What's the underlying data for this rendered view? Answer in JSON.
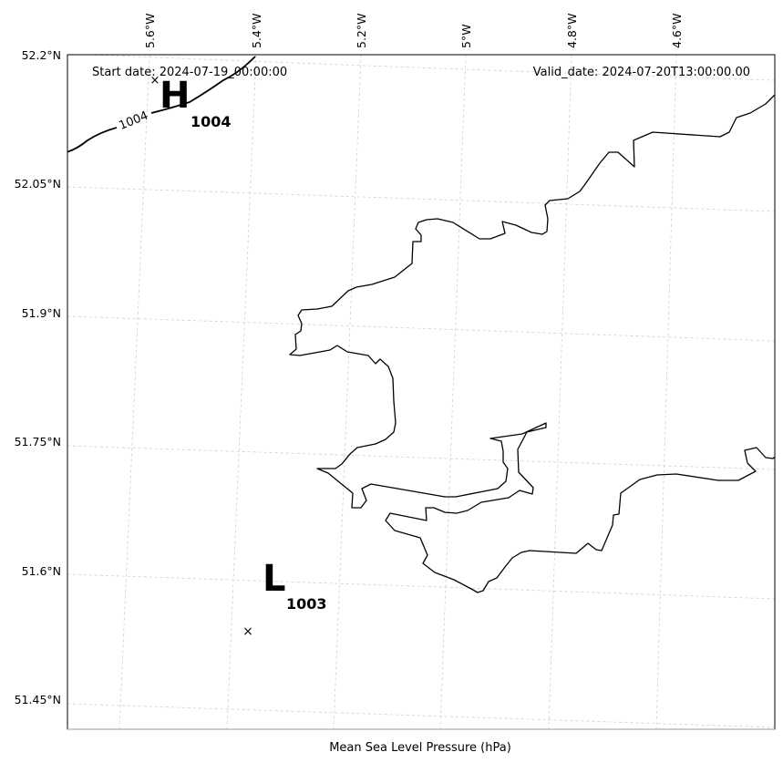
{
  "header": {
    "start_date": "Start date: 2024-07-19_00:00:00",
    "valid_date": "Valid_date: 2024-07-20T13:00:00.00"
  },
  "footer": {
    "xlabel": "Mean Sea Level Pressure (hPa)"
  },
  "axes": {
    "lon_ticks": [
      "5.6°W",
      "5.4°W",
      "5.2°W",
      "5°W",
      "4.8°W",
      "4.6°W"
    ],
    "lat_ticks": [
      "52.2°N",
      "52.05°N",
      "51.9°N",
      "51.75°N",
      "51.6°N",
      "51.45°N"
    ]
  },
  "pressure_centers": [
    {
      "type": "H",
      "value": "1004",
      "lon": -5.58,
      "lat": 52.17
    },
    {
      "type": "L",
      "value": "1003",
      "lon": -5.39,
      "lat": 51.54
    }
  ],
  "isobars": [
    {
      "label": "1004"
    }
  ],
  "colors": {
    "coastline": "#000000",
    "grid": "#cfcfcf",
    "isobar": "#000000"
  }
}
